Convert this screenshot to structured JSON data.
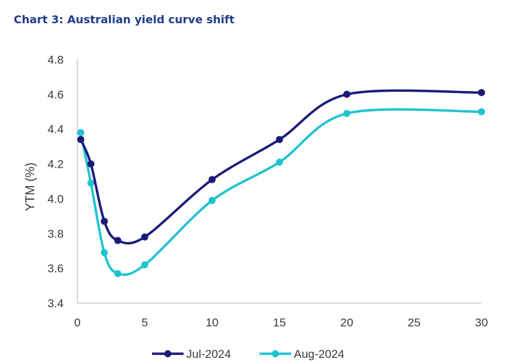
{
  "title": "Chart 3: Australian yield curve shift",
  "chart_data": {
    "type": "line",
    "title": "Chart 3: Australian yield curve shift",
    "xlabel": "",
    "ylabel": "YTM (%)",
    "xlim": [
      0,
      30
    ],
    "ylim": [
      3.4,
      4.8
    ],
    "xticks": [
      0,
      5,
      10,
      15,
      20,
      25,
      30
    ],
    "yticks": [
      3.4,
      3.6,
      3.8,
      4.0,
      4.2,
      4.4,
      4.6,
      4.8
    ],
    "ytick_labels": [
      "3.4",
      "3.6",
      "3.8",
      "4.0",
      "4.2",
      "4.4",
      "4.6",
      "4.8"
    ],
    "grid": false,
    "legend_position": "bottom-center",
    "series": [
      {
        "name": "Jul-2024",
        "color": "#1a1a7a",
        "x": [
          0.25,
          1,
          2,
          3,
          5,
          10,
          15,
          20,
          30
        ],
        "y": [
          4.34,
          4.2,
          3.87,
          3.76,
          3.78,
          4.11,
          4.34,
          4.6,
          4.61
        ]
      },
      {
        "name": "Aug-2024",
        "color": "#1fc3d0",
        "x": [
          0.25,
          1,
          2,
          3,
          5,
          10,
          15,
          20,
          30
        ],
        "y": [
          4.38,
          4.09,
          3.69,
          3.57,
          3.62,
          3.99,
          4.21,
          4.49,
          4.5
        ]
      }
    ]
  }
}
